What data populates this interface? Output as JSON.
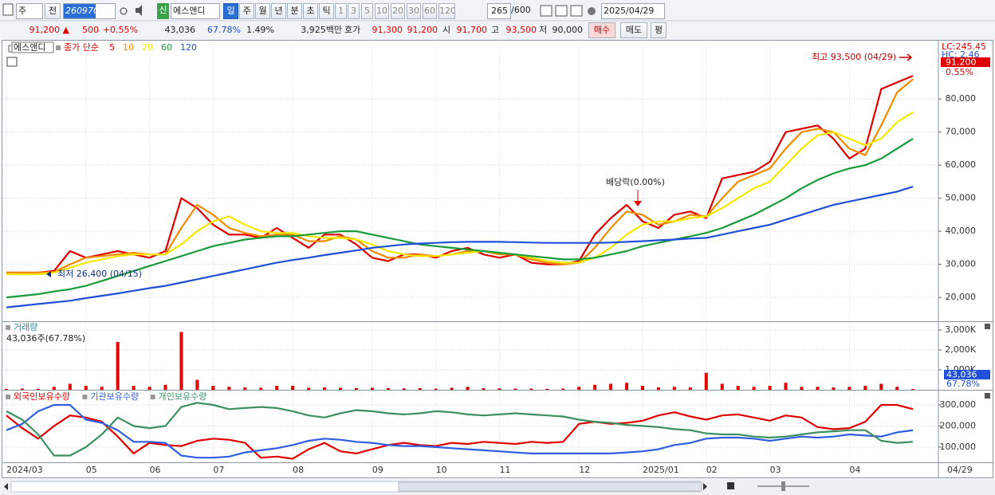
{
  "toolbar": {
    "market": "주",
    "scope": "전",
    "code": "260970",
    "badge": "신",
    "name": "에스앤디",
    "periods": [
      "일",
      "주",
      "월",
      "년",
      "분",
      "초",
      "틱"
    ],
    "intervals": [
      "1",
      "3",
      "5",
      "10",
      "20",
      "30",
      "60",
      "120"
    ],
    "count": "265",
    "max": "/600",
    "date": "2025/04/29"
  },
  "quote_bar": {
    "price": "91,200 ▲",
    "change": "500",
    "change_pct": "+0.55%",
    "volume": "43,036",
    "volume_ratio": "67.78%",
    "turnover": "1.49%",
    "amount": "3,925백만",
    "ask_label": "호가",
    "ask": "91,300",
    "bid": "91,200",
    "open_label": "시",
    "open": "91,700",
    "high_label": "고",
    "high": "93,500",
    "low_label": "저",
    "low": "90,000",
    "buy": "매수",
    "sell": "매도",
    "avg": "평"
  },
  "chart_data": [
    {
      "type": "line",
      "title": "에스앤디",
      "legend_prefix": "종가 단순",
      "last_date": "04/29",
      "categories": [
        "2024/03",
        null,
        null,
        null,
        null,
        "05",
        null,
        null,
        null,
        "06",
        null,
        null,
        null,
        "07",
        null,
        null,
        null,
        null,
        "08",
        null,
        null,
        null,
        null,
        "09",
        null,
        null,
        null,
        "10",
        null,
        null,
        null,
        "11",
        null,
        null,
        null,
        null,
        "12",
        null,
        null,
        null,
        "2025/01",
        null,
        null,
        null,
        "02",
        null,
        null,
        null,
        "03",
        null,
        null,
        null,
        null,
        "04",
        null,
        null,
        null,
        null
      ],
      "series": [
        {
          "name": "5",
          "color": "#e00000",
          "values": [
            27500,
            27500,
            27500,
            28000,
            34000,
            32000,
            33000,
            34000,
            33000,
            32000,
            34000,
            50000,
            47000,
            42000,
            39000,
            39000,
            38000,
            41000,
            38000,
            35000,
            39000,
            39000,
            36000,
            32000,
            31000,
            33000,
            33000,
            32000,
            34000,
            35000,
            33000,
            32000,
            33000,
            30500,
            30000,
            30000,
            31000,
            39000,
            44000,
            48000,
            43000,
            41000,
            45000,
            46000,
            44000,
            56000,
            57000,
            58000,
            61000,
            70000,
            71000,
            72000,
            68000,
            62000,
            65000,
            83000,
            85000,
            87000
          ]
        },
        {
          "name": "10",
          "color": "#f08a00",
          "values": [
            27500,
            27500,
            27500,
            27700,
            30000,
            32000,
            32500,
            33000,
            33500,
            33000,
            33000,
            41000,
            48000,
            45000,
            41000,
            39500,
            38500,
            39000,
            39000,
            37000,
            37000,
            38500,
            37500,
            34000,
            32000,
            32000,
            33000,
            32500,
            33000,
            34000,
            34000,
            33000,
            33000,
            31500,
            30500,
            30000,
            30500,
            35000,
            41000,
            46000,
            45000,
            42000,
            43000,
            45000,
            44500,
            50000,
            55000,
            57000,
            59000,
            65000,
            70000,
            71000,
            70000,
            65000,
            63000,
            72000,
            82000,
            86000
          ]
        },
        {
          "name": "20",
          "color": "#f5e600",
          "values": [
            27000,
            27000,
            27000,
            27500,
            29000,
            30500,
            31500,
            32500,
            33000,
            33000,
            33000,
            36000,
            40000,
            43000,
            44500,
            42000,
            40000,
            39500,
            39500,
            38500,
            38000,
            38000,
            37500,
            36000,
            34000,
            33000,
            32500,
            32500,
            33000,
            33500,
            34000,
            33500,
            33000,
            32000,
            31000,
            30500,
            30500,
            32000,
            35000,
            39000,
            42000,
            43000,
            43000,
            44000,
            44500,
            47000,
            50000,
            53000,
            55000,
            60000,
            65000,
            69000,
            70000,
            68000,
            66000,
            68000,
            73000,
            76000
          ]
        },
        {
          "name": "60",
          "color": "#1a9a3a",
          "values": [
            20000,
            20500,
            21000,
            21800,
            22500,
            23500,
            25000,
            26500,
            28000,
            29500,
            31000,
            32500,
            34000,
            35500,
            36500,
            37500,
            38000,
            38500,
            38500,
            39000,
            39500,
            40000,
            40000,
            39000,
            38000,
            37000,
            36000,
            35500,
            35000,
            34500,
            34000,
            33500,
            33000,
            32500,
            32000,
            31500,
            31500,
            32000,
            33000,
            34000,
            35500,
            36500,
            37500,
            38500,
            39500,
            41000,
            43000,
            45000,
            47500,
            50000,
            53000,
            55500,
            57500,
            59000,
            60000,
            62000,
            65000,
            68000
          ]
        },
        {
          "name": "120",
          "color": "#2050d8",
          "values": [
            17000,
            17500,
            18000,
            18500,
            19000,
            19800,
            20500,
            21200,
            22000,
            22800,
            23500,
            24500,
            25500,
            26500,
            27500,
            28500,
            29500,
            30500,
            31300,
            32000,
            32800,
            33500,
            34200,
            35000,
            35500,
            36000,
            36300,
            36500,
            36700,
            36800,
            36800,
            36800,
            36700,
            36600,
            36500,
            36500,
            36500,
            36500,
            36600,
            36800,
            37000,
            37300,
            37500,
            37800,
            38000,
            39000,
            40000,
            41000,
            42000,
            43500,
            45000,
            46500,
            48000,
            49000,
            50000,
            51000,
            52000,
            53500
          ]
        }
      ],
      "ylim": [
        12800,
        97400
      ],
      "yticks": [
        {
          "value": 20000,
          "label": "20,000"
        },
        {
          "value": 30000,
          "label": "30,000"
        },
        {
          "value": 40000,
          "label": "40,000"
        },
        {
          "value": 50000,
          "label": "50,000"
        },
        {
          "value": 60000,
          "label": "60,000"
        },
        {
          "value": 70000,
          "label": "70,000"
        },
        {
          "value": 80000,
          "label": "80,000"
        }
      ],
      "grid": true,
      "annotations": {
        "high": "최고 93,500 (04/29)",
        "low": "최저 26,400 (04/15)",
        "ex_dividend": "배당락(0.00%)"
      },
      "scale_labels": {
        "lc": "LC:245.45",
        "hc": "HC: 2.46",
        "current": "91,200",
        "pct": "0.55%"
      }
    },
    {
      "type": "bar",
      "title": "거래량",
      "summary": "43,036주(67.78%)",
      "color": "#e00000",
      "values": [
        50000,
        60000,
        50000,
        150000,
        300000,
        200000,
        150000,
        2400000,
        200000,
        150000,
        250000,
        2900000,
        500000,
        200000,
        150000,
        120000,
        100000,
        200000,
        200000,
        100000,
        120000,
        100000,
        80000,
        100000,
        80000,
        70000,
        80000,
        60000,
        100000,
        150000,
        80000,
        70000,
        60000,
        60000,
        50000,
        60000,
        150000,
        250000,
        300000,
        350000,
        200000,
        120000,
        150000,
        120000,
        850000,
        300000,
        200000,
        150000,
        200000,
        350000,
        150000,
        150000,
        120000,
        150000,
        200000,
        300000,
        150000,
        43036
      ],
      "ylim": [
        0,
        3400000
      ],
      "yticks": [
        {
          "value": 1000000,
          "label": "1,000K"
        },
        {
          "value": 2000000,
          "label": "2,000K"
        },
        {
          "value": 3000000,
          "label": "3,000K"
        }
      ],
      "scale_labels": {
        "current": "43,036",
        "pct": "67.78%"
      }
    },
    {
      "type": "line",
      "series": [
        {
          "name": "외국인보유수량",
          "color": "#e00000",
          "values": [
            250000,
            190000,
            140000,
            200000,
            250000,
            240000,
            220000,
            150000,
            70000,
            120000,
            110000,
            105000,
            130000,
            140000,
            135000,
            120000,
            50000,
            55000,
            45000,
            90000,
            120000,
            80000,
            70000,
            90000,
            110000,
            120000,
            110000,
            105000,
            120000,
            115000,
            125000,
            120000,
            115000,
            125000,
            120000,
            125000,
            210000,
            220000,
            210000,
            215000,
            225000,
            250000,
            265000,
            245000,
            230000,
            250000,
            255000,
            240000,
            225000,
            250000,
            240000,
            195000,
            185000,
            190000,
            220000,
            300000,
            300000,
            280000
          ]
        },
        {
          "name": "기관보유수량",
          "color": "#2f5fe0",
          "values": [
            180000,
            210000,
            270000,
            300000,
            300000,
            230000,
            215000,
            180000,
            125000,
            125000,
            120000,
            60000,
            50000,
            50000,
            55000,
            75000,
            85000,
            95000,
            110000,
            130000,
            140000,
            135000,
            125000,
            120000,
            110000,
            105000,
            105000,
            100000,
            95000,
            90000,
            85000,
            80000,
            75000,
            70000,
            70000,
            70000,
            70000,
            70000,
            70000,
            75000,
            80000,
            90000,
            110000,
            120000,
            140000,
            145000,
            145000,
            140000,
            130000,
            140000,
            150000,
            145000,
            150000,
            160000,
            155000,
            150000,
            170000,
            180000
          ]
        },
        {
          "name": "개인보유수량",
          "color": "#3a9060",
          "values": [
            270000,
            230000,
            160000,
            60000,
            60000,
            100000,
            160000,
            240000,
            200000,
            190000,
            200000,
            290000,
            310000,
            300000,
            280000,
            285000,
            290000,
            285000,
            270000,
            250000,
            240000,
            260000,
            275000,
            270000,
            260000,
            255000,
            260000,
            270000,
            265000,
            255000,
            250000,
            255000,
            260000,
            255000,
            250000,
            245000,
            230000,
            220000,
            215000,
            205000,
            200000,
            195000,
            185000,
            180000,
            165000,
            160000,
            160000,
            150000,
            145000,
            150000,
            160000,
            170000,
            175000,
            180000,
            180000,
            130000,
            120000,
            125000
          ]
        }
      ],
      "ylim": [
        28000,
        364000
      ],
      "yticks": [
        {
          "value": 100000,
          "label": "100,000"
        },
        {
          "value": 200000,
          "label": "200,000"
        },
        {
          "value": 300000,
          "label": "300,000"
        }
      ]
    }
  ]
}
